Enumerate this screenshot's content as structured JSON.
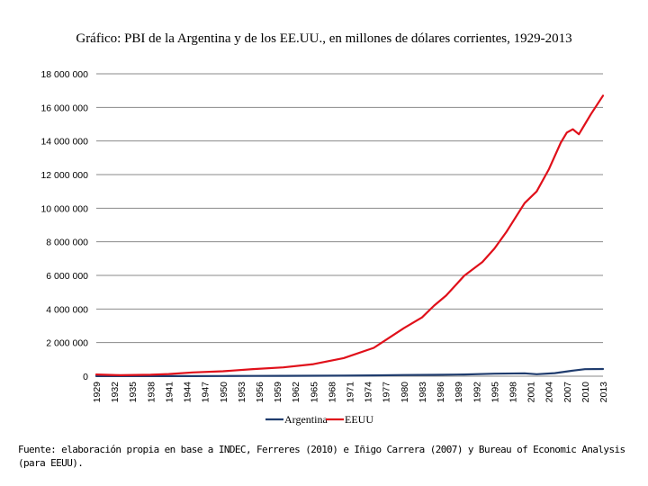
{
  "chart_data": {
    "type": "line",
    "title": "Gráfico: PBI de la Argentina y de los EE.UU., en millones de dólares corrientes, 1929-2013",
    "xlabel": "",
    "ylabel": "",
    "ylim": [
      0,
      18000000
    ],
    "y_ticks": [
      0,
      2000000,
      4000000,
      6000000,
      8000000,
      10000000,
      12000000,
      14000000,
      16000000,
      18000000
    ],
    "y_tick_labels": [
      "0",
      "2 000 000",
      "4 000 000",
      "6 000 000",
      "8 000 000",
      "10 000 000",
      "12 000 000",
      "14 000 000",
      "16 000 000",
      "18 000 000"
    ],
    "x_tick_labels": [
      "1929",
      "1932",
      "1935",
      "1938",
      "1941",
      "1944",
      "1947",
      "1950",
      "1953",
      "1956",
      "1959",
      "1962",
      "1965",
      "1968",
      "1971",
      "1974",
      "1977",
      "1980",
      "1983",
      "1986",
      "1989",
      "1992",
      "1995",
      "1998",
      "2001",
      "2004",
      "2007",
      "2010",
      "2013"
    ],
    "grid": true,
    "legend": "bottom",
    "series": [
      {
        "name": "Argentina",
        "color": "#1f3c6e",
        "x": [
          1929,
          1935,
          1940,
          1945,
          1950,
          1955,
          1960,
          1965,
          1970,
          1975,
          1980,
          1985,
          1990,
          1995,
          2000,
          2002,
          2005,
          2008,
          2010,
          2013
        ],
        "values": [
          5000,
          4000,
          6000,
          8000,
          10000,
          15000,
          20000,
          25000,
          30000,
          50000,
          70000,
          80000,
          100000,
          150000,
          170000,
          120000,
          180000,
          330000,
          420000,
          430000
        ]
      },
      {
        "name": "EEUU",
        "color": "#e0101a",
        "x": [
          1929,
          1933,
          1938,
          1941,
          1945,
          1950,
          1955,
          1960,
          1965,
          1970,
          1975,
          1980,
          1983,
          1985,
          1987,
          1990,
          1993,
          1995,
          1997,
          2000,
          2002,
          2004,
          2006,
          2007,
          2008,
          2009,
          2010,
          2011,
          2013
        ],
        "values": [
          104000,
          57000,
          87000,
          129000,
          223000,
          294000,
          425000,
          526000,
          719000,
          1075000,
          1688000,
          2862000,
          3500000,
          4200000,
          4800000,
          5980000,
          6800000,
          7600000,
          8600000,
          10300000,
          11000000,
          12300000,
          13900000,
          14500000,
          14700000,
          14400000,
          15000000,
          15600000,
          16700000
        ]
      }
    ]
  },
  "footnote": "Fuente: elaboración propia en base a INDEC, Ferreres (2010) e Iñigo Carrera (2007) y Bureau of Economic Analysis (para EEUU)."
}
